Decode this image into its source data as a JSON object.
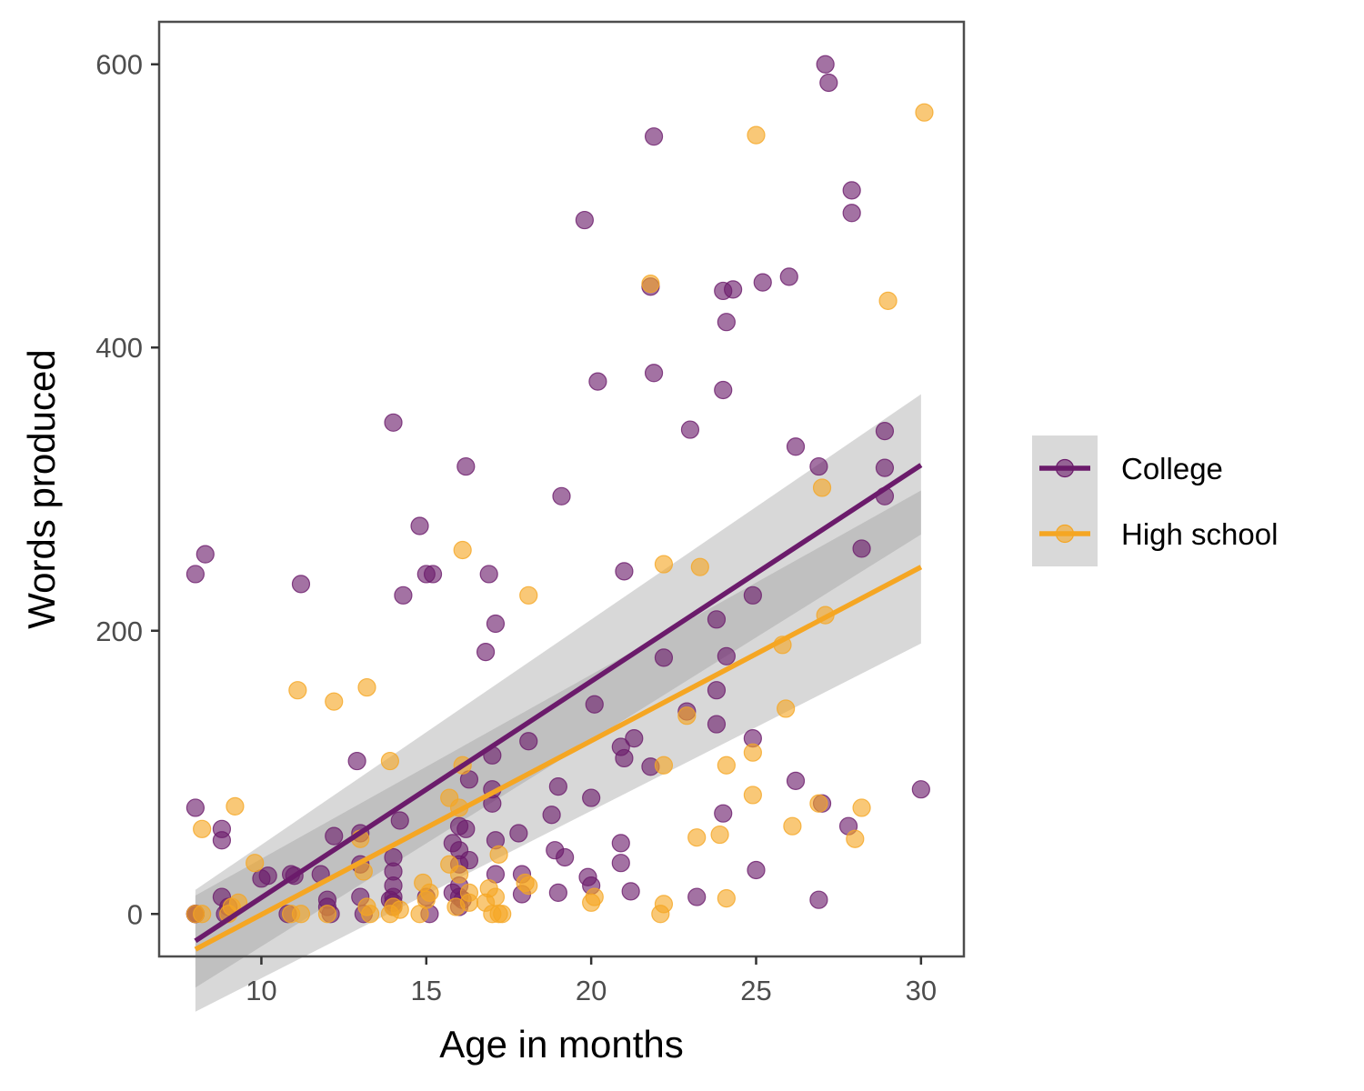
{
  "chart_data": {
    "type": "scatter",
    "title": "",
    "xlabel": "Age in months",
    "ylabel": "Words produced",
    "xlim": [
      6.9,
      31.3
    ],
    "ylim": [
      -30,
      630
    ],
    "xticks": [
      10,
      15,
      20,
      25,
      30
    ],
    "yticks": [
      0,
      200,
      400,
      600
    ],
    "grid": false,
    "legend_position": "right",
    "series": [
      {
        "name": "College",
        "color": "#6b1b6b",
        "points": [
          [
            8,
            0
          ],
          [
            8,
            0
          ],
          [
            8,
            0
          ],
          [
            8,
            75
          ],
          [
            8,
            240
          ],
          [
            8.3,
            254
          ],
          [
            8.8,
            60
          ],
          [
            8.8,
            52
          ],
          [
            8.8,
            12
          ],
          [
            8.9,
            0
          ],
          [
            9,
            5
          ],
          [
            10,
            25
          ],
          [
            10.2,
            27
          ],
          [
            10.8,
            0
          ],
          [
            10.9,
            28
          ],
          [
            11,
            27
          ],
          [
            11.2,
            233
          ],
          [
            11.8,
            28
          ],
          [
            12,
            10
          ],
          [
            12,
            5
          ],
          [
            12.1,
            0
          ],
          [
            12.2,
            55
          ],
          [
            12.9,
            108
          ],
          [
            13,
            57
          ],
          [
            13,
            35
          ],
          [
            13,
            12
          ],
          [
            13.1,
            0
          ],
          [
            13.9,
            10
          ],
          [
            14,
            5
          ],
          [
            14,
            8
          ],
          [
            14,
            12
          ],
          [
            14,
            30
          ],
          [
            14,
            40
          ],
          [
            14,
            20
          ],
          [
            14,
            347
          ],
          [
            14.2,
            66
          ],
          [
            14.3,
            225
          ],
          [
            14.8,
            274
          ],
          [
            15,
            240
          ],
          [
            15,
            12
          ],
          [
            15.1,
            0
          ],
          [
            15.2,
            240
          ],
          [
            15.8,
            50
          ],
          [
            15.8,
            15
          ],
          [
            16,
            62
          ],
          [
            16,
            20
          ],
          [
            16,
            12
          ],
          [
            16,
            5
          ],
          [
            16,
            45
          ],
          [
            16,
            35
          ],
          [
            16.1,
            10
          ],
          [
            16.2,
            316
          ],
          [
            16.2,
            60
          ],
          [
            16.3,
            95
          ],
          [
            16.3,
            38
          ],
          [
            16.8,
            185
          ],
          [
            16.9,
            240
          ],
          [
            17,
            78
          ],
          [
            17,
            88
          ],
          [
            17,
            112
          ],
          [
            17.1,
            52
          ],
          [
            17.1,
            205
          ],
          [
            17.1,
            28
          ],
          [
            17.8,
            57
          ],
          [
            17.9,
            28
          ],
          [
            17.9,
            14
          ],
          [
            18.1,
            122
          ],
          [
            18.8,
            70
          ],
          [
            18.9,
            45
          ],
          [
            19,
            90
          ],
          [
            19,
            15
          ],
          [
            19.1,
            295
          ],
          [
            19.2,
            40
          ],
          [
            19.8,
            490
          ],
          [
            19.9,
            26
          ],
          [
            20,
            82
          ],
          [
            20,
            20
          ],
          [
            20.1,
            148
          ],
          [
            20.2,
            376
          ],
          [
            20.9,
            50
          ],
          [
            20.9,
            36
          ],
          [
            20.9,
            118
          ],
          [
            21,
            110
          ],
          [
            21,
            242
          ],
          [
            21.2,
            16
          ],
          [
            21.3,
            124
          ],
          [
            21.8,
            104
          ],
          [
            21.8,
            443
          ],
          [
            21.9,
            382
          ],
          [
            21.9,
            549
          ],
          [
            22.2,
            181
          ],
          [
            22.9,
            143
          ],
          [
            23,
            342
          ],
          [
            23.2,
            12
          ],
          [
            23.8,
            208
          ],
          [
            23.8,
            158
          ],
          [
            23.8,
            134
          ],
          [
            24,
            440
          ],
          [
            24,
            370
          ],
          [
            24,
            71
          ],
          [
            24.1,
            182
          ],
          [
            24.1,
            418
          ],
          [
            24.3,
            441
          ],
          [
            24.9,
            225
          ],
          [
            24.9,
            124
          ],
          [
            25,
            31
          ],
          [
            25.2,
            446
          ],
          [
            26,
            450
          ],
          [
            26.2,
            330
          ],
          [
            26.2,
            94
          ],
          [
            26.9,
            316
          ],
          [
            26.9,
            10
          ],
          [
            27,
            78
          ],
          [
            27.1,
            600
          ],
          [
            27.2,
            587
          ],
          [
            27.8,
            62
          ],
          [
            27.9,
            511
          ],
          [
            27.9,
            495
          ],
          [
            28.2,
            258
          ],
          [
            28.9,
            341
          ],
          [
            28.9,
            315
          ],
          [
            28.9,
            295
          ],
          [
            30,
            88
          ]
        ]
      },
      {
        "name": "High school",
        "color": "#f5a623",
        "points": [
          [
            8,
            0
          ],
          [
            8.2,
            0
          ],
          [
            8.2,
            60
          ],
          [
            9,
            0
          ],
          [
            9.1,
            5
          ],
          [
            9.2,
            76
          ],
          [
            9.3,
            8
          ],
          [
            9.8,
            36
          ],
          [
            10.9,
            0
          ],
          [
            11.1,
            158
          ],
          [
            11.2,
            0
          ],
          [
            12,
            0
          ],
          [
            12.2,
            150
          ],
          [
            13,
            53
          ],
          [
            13.1,
            30
          ],
          [
            13.2,
            160
          ],
          [
            13.2,
            5
          ],
          [
            13.3,
            0
          ],
          [
            13.9,
            0
          ],
          [
            13.9,
            108
          ],
          [
            14,
            5
          ],
          [
            14.2,
            3
          ],
          [
            14.8,
            0
          ],
          [
            14.9,
            22
          ],
          [
            15,
            10
          ],
          [
            15.1,
            15
          ],
          [
            15.7,
            35
          ],
          [
            15.7,
            82
          ],
          [
            15.9,
            5
          ],
          [
            16,
            75
          ],
          [
            16,
            28
          ],
          [
            16.1,
            105
          ],
          [
            16.1,
            257
          ],
          [
            16.3,
            15
          ],
          [
            16.3,
            8
          ],
          [
            16.8,
            8
          ],
          [
            16.9,
            18
          ],
          [
            17,
            0
          ],
          [
            17.1,
            12
          ],
          [
            17.2,
            0
          ],
          [
            17.2,
            42
          ],
          [
            17.3,
            0
          ],
          [
            18,
            22
          ],
          [
            18.1,
            225
          ],
          [
            18.1,
            20
          ],
          [
            20,
            8
          ],
          [
            20.1,
            12
          ],
          [
            21.8,
            445
          ],
          [
            22.1,
            0
          ],
          [
            22.2,
            105
          ],
          [
            22.2,
            7
          ],
          [
            22.2,
            247
          ],
          [
            22.9,
            140
          ],
          [
            23.2,
            54
          ],
          [
            23.3,
            245
          ],
          [
            23.9,
            56
          ],
          [
            24.1,
            105
          ],
          [
            24.1,
            11
          ],
          [
            24.9,
            84
          ],
          [
            24.9,
            114
          ],
          [
            25,
            550
          ],
          [
            25.8,
            190
          ],
          [
            25.9,
            145
          ],
          [
            26.1,
            62
          ],
          [
            26.9,
            78
          ],
          [
            27,
            301
          ],
          [
            27.1,
            211
          ],
          [
            28,
            53
          ],
          [
            28.2,
            75
          ],
          [
            29,
            433
          ],
          [
            30.1,
            566
          ]
        ]
      }
    ],
    "fits": [
      {
        "series": "College",
        "x": [
          8,
          30
        ],
        "y": [
          -19,
          317
        ],
        "ci_lower": [
          -52,
          268
        ],
        "ci_upper": [
          17,
          367
        ]
      },
      {
        "series": "High school",
        "x": [
          8,
          30
        ],
        "y": [
          -25,
          245
        ],
        "ci_lower": [
          -69,
          191
        ],
        "ci_upper": [
          13,
          299
        ]
      }
    ],
    "colors": {
      "panel_border": "#4d4d4d",
      "ribbon": "#999999",
      "legend_key_bg": "#d9d9d9",
      "tick_text": "#4d4d4d"
    },
    "legend": {
      "items": [
        "College",
        "High school"
      ]
    }
  }
}
